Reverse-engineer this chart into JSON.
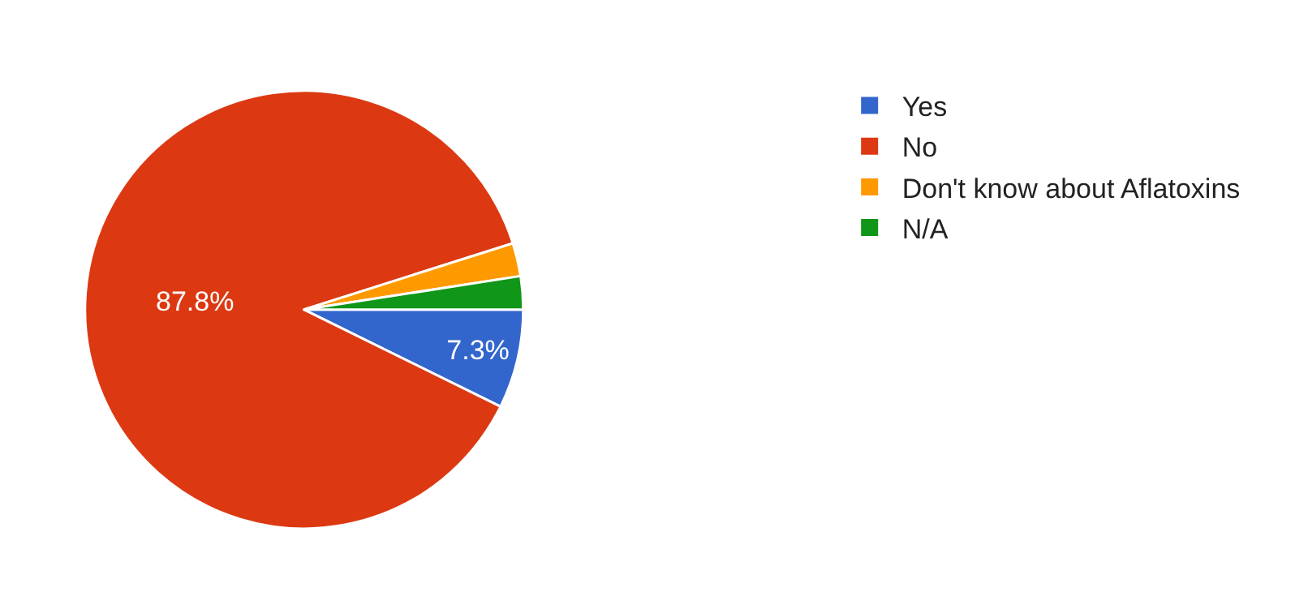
{
  "chart_data": {
    "type": "pie",
    "categories": [
      "Yes",
      "No",
      "Don't know about Aflatoxins",
      "N/A"
    ],
    "values": [
      7.3,
      87.8,
      2.45,
      2.45
    ],
    "value_labels": [
      "7.3%",
      "87.8%",
      null,
      null
    ],
    "colors": [
      "#3366cc",
      "#dc3912",
      "#ff9900",
      "#109618"
    ],
    "legend": "top right"
  }
}
